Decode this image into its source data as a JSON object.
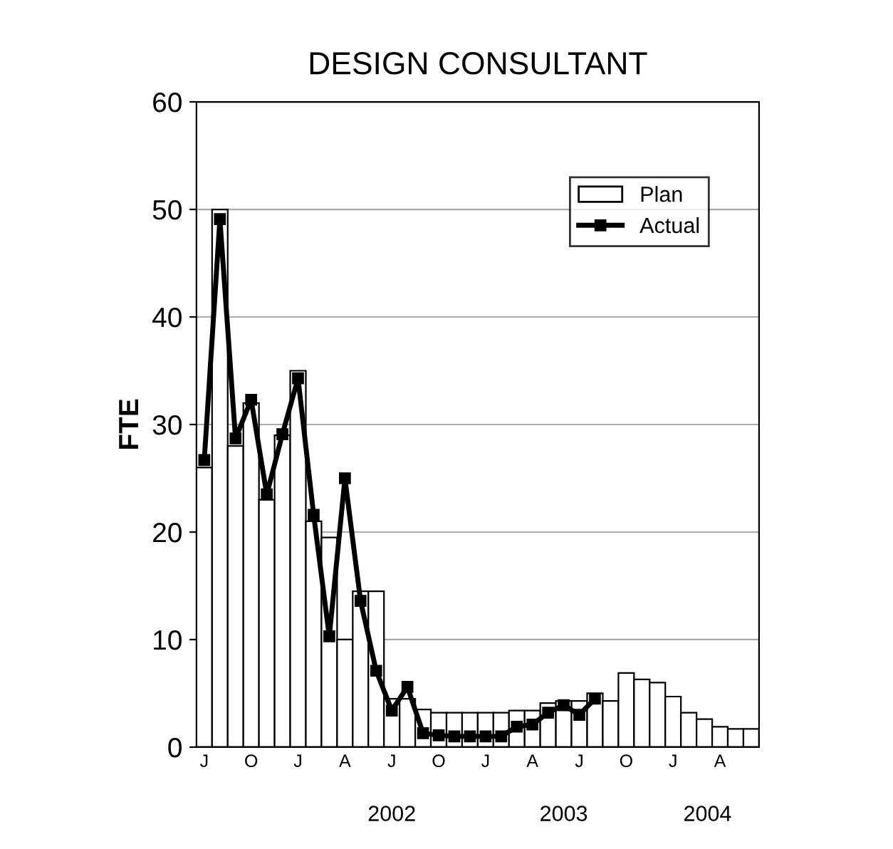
{
  "chart_data": {
    "type": "bar",
    "title": "DESIGN CONSULTANT",
    "ylabel": "FTE",
    "categories": [
      "J",
      null,
      null,
      "O",
      null,
      null,
      "J",
      null,
      null,
      "A",
      null,
      null,
      "J",
      null,
      null,
      "O",
      null,
      null,
      "J",
      null,
      null,
      "A",
      null,
      null,
      "J",
      null,
      null,
      "O",
      null,
      null,
      "J",
      null,
      null,
      "A",
      null,
      null
    ],
    "series": [
      {
        "name": "Plan",
        "color": "#ffffff",
        "values": [
          26,
          50,
          28,
          32,
          23,
          29,
          35,
          21,
          19.5,
          10,
          14.5,
          14.5,
          4.5,
          4.5,
          3.5,
          3.2,
          3.2,
          3.2,
          3.2,
          3.2,
          3.4,
          3.4,
          4.1,
          4.3,
          4.3,
          5,
          4.3,
          6.9,
          6.3,
          6,
          4.7,
          3.2,
          2.6,
          1.9,
          1.7,
          1.7
        ]
      },
      {
        "name": "Actual",
        "type": "line",
        "color": "#000000",
        "values": [
          26.7,
          49.1,
          28.7,
          32.3,
          23.5,
          29.1,
          34.3,
          21.6,
          10.3,
          25,
          13.6,
          7.1,
          3.4,
          5.6,
          1.3,
          1.1,
          1,
          1,
          1,
          1,
          1.9,
          2.1,
          3.2,
          3.9,
          3,
          4.5,
          null,
          null,
          null,
          null,
          null,
          null,
          null,
          null,
          null,
          null
        ]
      }
    ],
    "ylim": [
      0,
      60
    ],
    "yticks": [
      0,
      10,
      20,
      30,
      40,
      50,
      60
    ],
    "grid": "y",
    "legend": "top right",
    "marker": "square",
    "line_style": "solid",
    "annotations": [
      "2002",
      "2003",
      "2004"
    ]
  }
}
